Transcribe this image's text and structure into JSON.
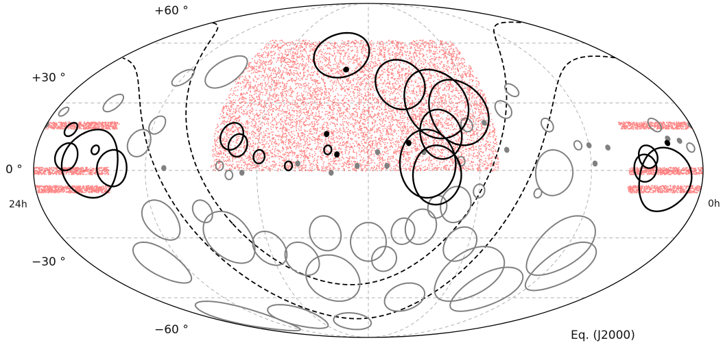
{
  "chart_data": {
    "type": "scatter",
    "projection": "mollweide",
    "frame": "Eq. (J2000)",
    "ra_edge_labels": {
      "left": "24h",
      "right": "0h"
    },
    "dec_tick_labels": [
      {
        "dec": 60,
        "label": "+60 °"
      },
      {
        "dec": 30,
        "label": "+30 °"
      },
      {
        "dec": 0,
        "label": "0 °"
      },
      {
        "dec": -30,
        "label": "−30 °"
      },
      {
        "dec": -60,
        "label": "−60 °"
      }
    ],
    "grid": true,
    "graticule": {
      "ra_step_deg": 60,
      "dec_step_deg": 30
    },
    "colors": {
      "frame": "#000000",
      "grid": "#b0b0b0",
      "survey_points": "#ff2020",
      "highlight_regions": "#000000",
      "other_regions": "#808080",
      "galactic_boundary": "#000000"
    },
    "survey_footprint": {
      "color": "#ff2020",
      "main_region": {
        "ra_deg": [
          110,
          265
        ],
        "dec_deg": [
          0,
          62
        ]
      },
      "stripes": [
        {
          "dec_deg": 0,
          "half_width_deg": 1.6
        },
        {
          "dec_deg": 20,
          "half_width_deg": 1.6
        },
        {
          "dec_deg": -8,
          "half_width_deg": 1.6
        }
      ]
    },
    "galactic_boundary": {
      "style": "dashed",
      "galactic_latitude_deg": [
        10,
        -10
      ]
    },
    "highlight_regions": [
      {
        "ra": 160,
        "dec": 39,
        "radius": 12
      },
      {
        "ra": 128,
        "dec": 26,
        "radius": 15
      },
      {
        "ra": 140,
        "dec": 30,
        "radius": 16
      },
      {
        "ra": 140,
        "dec": 16,
        "radius": 11
      },
      {
        "ra": 148,
        "dec": 3,
        "radius": 15
      },
      {
        "ra": 143,
        "dec": -2,
        "radius": 13
      },
      {
        "ra": 255,
        "dec": 15,
        "radius": 6
      },
      {
        "ra": 251,
        "dec": 11,
        "radius": 5
      },
      {
        "ra": 239,
        "dec": 6,
        "radius": 3
      },
      {
        "ra": 223,
        "dec": 2,
        "radius": 2
      },
      {
        "ra": 203,
        "dec": 16,
        "radius": 1
      },
      {
        "ra": 202,
        "dec": 9,
        "radius": 2
      },
      {
        "ra": 197,
        "dec": 7,
        "radius": 1
      },
      {
        "ra": 158,
        "dec": 12,
        "radius": 1
      },
      {
        "ra": 31,
        "dec": 1,
        "radius": 6
      },
      {
        "ra": 29,
        "dec": 6,
        "radius": 5
      },
      {
        "ra": 20,
        "dec": -4,
        "radius": 14
      },
      {
        "ra": 330,
        "dec": 3,
        "radius": 15
      },
      {
        "ra": 318,
        "dec": 1,
        "radius": 8
      },
      {
        "ra": 328,
        "dec": 9,
        "radius": 2
      },
      {
        "ra": 343,
        "dec": 6,
        "radius": 6
      },
      {
        "ra": 345,
        "dec": 18,
        "radius": 3
      },
      {
        "ra": 17,
        "dec": 12,
        "radius": 1
      },
      {
        "ra": 200,
        "dec": 54,
        "radius": 12
      },
      {
        "ra": 195,
        "dec": 46,
        "radius": 1
      }
    ],
    "other_regions": [
      {
        "ra": 80,
        "dec": -1,
        "radius": 10
      },
      {
        "ra": 63,
        "dec": -34,
        "radius": 14
      },
      {
        "ra": 88,
        "dec": -56,
        "radius": 12
      },
      {
        "ra": 52,
        "dec": -44,
        "radius": 12
      },
      {
        "ra": 110,
        "dec": -48,
        "radius": 14
      },
      {
        "ra": 125,
        "dec": -33,
        "radius": 8
      },
      {
        "ra": 132,
        "dec": -15,
        "radius": 8
      },
      {
        "ra": 142,
        "dec": -16,
        "radius": 5
      },
      {
        "ra": 150,
        "dec": -25,
        "radius": 8
      },
      {
        "ra": 160,
        "dec": -27,
        "radius": 6
      },
      {
        "ra": 170,
        "dec": -40,
        "radius": 6
      },
      {
        "ra": 180,
        "dec": -32,
        "radius": 9
      },
      {
        "ra": 205,
        "dec": -28,
        "radius": 8
      },
      {
        "ra": 205,
        "dec": -50,
        "radius": 12
      },
      {
        "ra": 222,
        "dec": -40,
        "radius": 8
      },
      {
        "ra": 240,
        "dec": -35,
        "radius": 8
      },
      {
        "ra": 262,
        "dec": -30,
        "radius": 12
      },
      {
        "ra": 272,
        "dec": -18,
        "radius": 5
      },
      {
        "ra": 297,
        "dec": -22,
        "radius": 9
      },
      {
        "ra": 314,
        "dec": -42,
        "radius": 10
      },
      {
        "ra": 320,
        "dec": -72,
        "radius": 10
      },
      {
        "ra": 260,
        "dec": -72,
        "radius": 8
      },
      {
        "ra": 200,
        "dec": -75,
        "radius": 6
      },
      {
        "ra": 150,
        "dec": -60,
        "radius": 8
      },
      {
        "ra": 305,
        "dec": 12,
        "radius": 6
      },
      {
        "ra": 298,
        "dec": 20,
        "radius": 4
      },
      {
        "ra": 330,
        "dec": 30,
        "radius": 4
      },
      {
        "ra": 275,
        "dec": 45,
        "radius": 8
      },
      {
        "ra": 300,
        "dec": 42,
        "radius": 4
      },
      {
        "ra": 260,
        "dec": 2,
        "radius": 2
      },
      {
        "ra": 255,
        "dec": -2,
        "radius": 2
      },
      {
        "ra": 248,
        "dec": -1,
        "radius": 1
      },
      {
        "ra": 290,
        "dec": 1,
        "radius": 1
      },
      {
        "ra": 120,
        "dec": -9,
        "radius": 3
      },
      {
        "ra": 130,
        "dec": 4,
        "radius": 2
      },
      {
        "ra": 150,
        "dec": 8,
        "radius": 1
      },
      {
        "ra": 175,
        "dec": 8,
        "radius": 1
      },
      {
        "ra": 170,
        "dec": 2,
        "radius": 1
      },
      {
        "ra": 186,
        "dec": 2,
        "radius": 1
      },
      {
        "ra": 5,
        "dec": 10,
        "radius": 2
      },
      {
        "ra": 16,
        "dec": 14,
        "radius": 1
      },
      {
        "ra": 10,
        "dec": 13,
        "radius": 1
      },
      {
        "ra": 50,
        "dec": 10,
        "radius": 1
      },
      {
        "ra": 66,
        "dec": 11,
        "radius": 2
      },
      {
        "ra": 60,
        "dec": 11,
        "radius": 1
      },
      {
        "ra": 58,
        "dec": 3,
        "radius": 1
      },
      {
        "ra": 88,
        "dec": -10,
        "radius": 2
      },
      {
        "ra": 105,
        "dec": 9,
        "radius": 1
      },
      {
        "ra": 200,
        "dec": -1,
        "radius": 1
      },
      {
        "ra": 218,
        "dec": 3,
        "radius": 1
      },
      {
        "ra": 115,
        "dec": 21,
        "radius": 1
      },
      {
        "ra": 80,
        "dec": 20,
        "radius": 3
      },
      {
        "ra": 20,
        "dec": 20,
        "radius": 3
      },
      {
        "ra": 102,
        "dec": 27,
        "radius": 4
      },
      {
        "ra": 125,
        "dec": 20,
        "radius": 3
      },
      {
        "ra": 92,
        "dec": 36,
        "radius": 3
      },
      {
        "ra": 355,
        "dec": 26,
        "radius": 2
      },
      {
        "ra": 360,
        "dec": 20,
        "radius": 1
      }
    ]
  }
}
